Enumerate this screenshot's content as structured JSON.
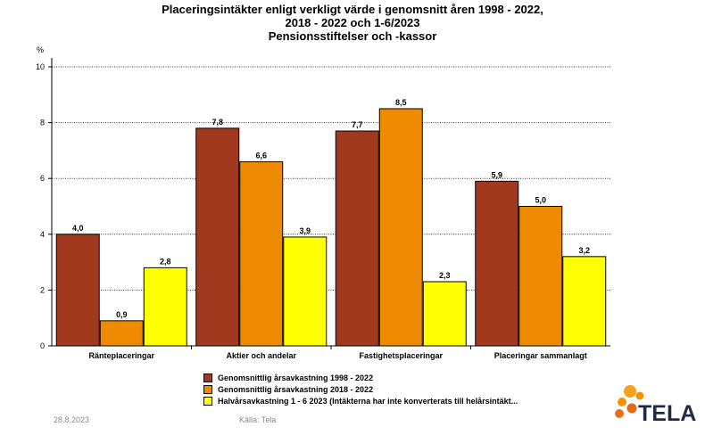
{
  "title_lines": [
    "Placeringsintäkter enligt verkligt värde i genomsnitt åren 1998 - 2022,",
    "2018 - 2022 och 1-6/2023",
    "Pensionsstiftelser och -kassor"
  ],
  "footer": {
    "date": "28.8.2023",
    "source": "Källa: Tela"
  },
  "logo": {
    "text": "TELA",
    "colors": [
      "#f39200",
      "#f39200",
      "#f39200",
      "#e8701a"
    ]
  },
  "chart_data": {
    "type": "bar",
    "title": "Placeringsintäkter enligt verkligt värde i genomsnitt åren 1998 - 2022, 2018 - 2022 och 1-6/2023 Pensionsstiftelser och -kassor",
    "unit_label": "%",
    "categories": [
      "Ränteplaceringar",
      "Aktier och andelar",
      "Fastighetsplaceringar",
      "Placeringar sammanlagt"
    ],
    "series": [
      {
        "name": "Genomsnittlig årsavkastning 1998 - 2022",
        "color": "#a0391e",
        "values": [
          4.0,
          7.8,
          7.7,
          5.9
        ],
        "labels": [
          "4,0",
          "7,8",
          "7,7",
          "5,9"
        ]
      },
      {
        "name": "Genomsnittlig årsavkastning 2018 - 2022",
        "color": "#ee8a00",
        "values": [
          0.9,
          6.6,
          8.5,
          5.0
        ],
        "labels": [
          "0,9",
          "6,6",
          "8,5",
          "5,0"
        ]
      },
      {
        "name": "Halvårsavkastning 1 - 6 2023 (Intäkterna har inte konverterats till helårsintäkt...",
        "color": "#ffff00",
        "values": [
          2.8,
          3.9,
          2.3,
          3.2
        ],
        "labels": [
          "2,8",
          "3,9",
          "2,3",
          "3,2"
        ]
      }
    ],
    "y_ticks": [
      "0",
      "2",
      "4",
      "6",
      "8",
      "10"
    ],
    "ylim": [
      0,
      10
    ],
    "grid": true,
    "legend_position": "bottom"
  }
}
